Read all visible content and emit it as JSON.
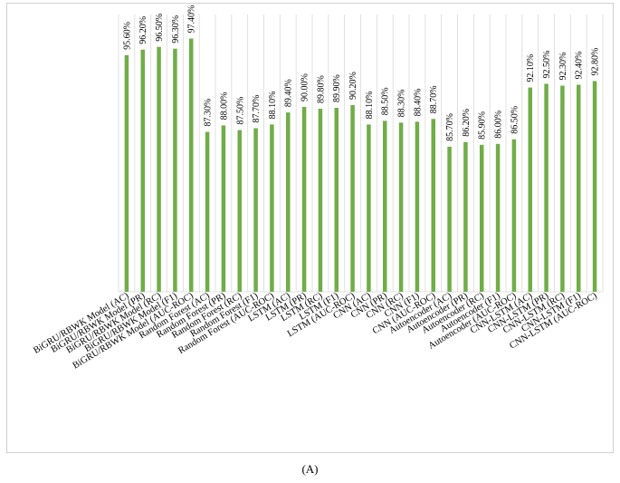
{
  "caption": "(A)",
  "chart_data": {
    "type": "bar",
    "categories": [
      "BiGRU/RBWK Model (AC)",
      "BiGRU/RBWK Model (PR)",
      "BiGRU/RBWK Model (RC)",
      "BiGRU/RBWK Model (F1)",
      "BiGRU/RBWK Model (AUC-ROC)",
      "Random Forest (AC)",
      "Random Forest (PR)",
      "Random Forest (RC)",
      "Random Forest (F1)",
      "Random Forest (AUC-ROC)",
      "LSTM (AC)",
      "LSTM (PR)",
      "LSTM (RC)",
      "LSTM (F1)",
      "LSTM (AUC-ROC)",
      "CNN (AC)",
      "CNN (PR)",
      "CNN (RC)",
      "CNN (F1)",
      "CNN (AUC-ROC)",
      "Autoencoder (AC)",
      "Autoencoder (PR)",
      "Autoencoder (RC)",
      "Autoencoder (F1)",
      "Autoencoder (AUC-ROC)",
      "CNN-LSTM (AC)",
      "CNN-LSTM (PR)",
      "CNN-LSTM (RC)",
      "CNN-LSTM (F1)",
      "CNN-LSTM (AUC-ROC)"
    ],
    "values": [
      95.6,
      96.2,
      96.5,
      96.3,
      97.4,
      87.3,
      88.0,
      87.5,
      87.7,
      88.1,
      89.4,
      90.0,
      89.8,
      89.9,
      90.2,
      88.1,
      88.5,
      88.3,
      88.4,
      88.7,
      85.7,
      86.2,
      85.9,
      86.0,
      86.5,
      92.1,
      92.5,
      92.3,
      92.4,
      92.8
    ],
    "labels": [
      "95.60%",
      "96.20%",
      "96.50%",
      "96.30%",
      "97.40%",
      "87.30%",
      "88.00%",
      "87.50%",
      "87.70%",
      "88.10%",
      "89.40%",
      "90.00%",
      "89.80%",
      "89.90%",
      "90.20%",
      "88.10%",
      "88.50%",
      "88.30%",
      "88.40%",
      "88.70%",
      "85.70%",
      "86.20%",
      "85.90%",
      "86.00%",
      "86.50%",
      "92.10%",
      "92.50%",
      "92.30%",
      "92.40%",
      "92.80%"
    ],
    "title": "",
    "xlabel": "",
    "ylabel": "",
    "ylim": [
      70,
      100
    ],
    "grid": "vertical",
    "bar_color": "#70ad47",
    "grid_color": "#d9d9d9"
  }
}
